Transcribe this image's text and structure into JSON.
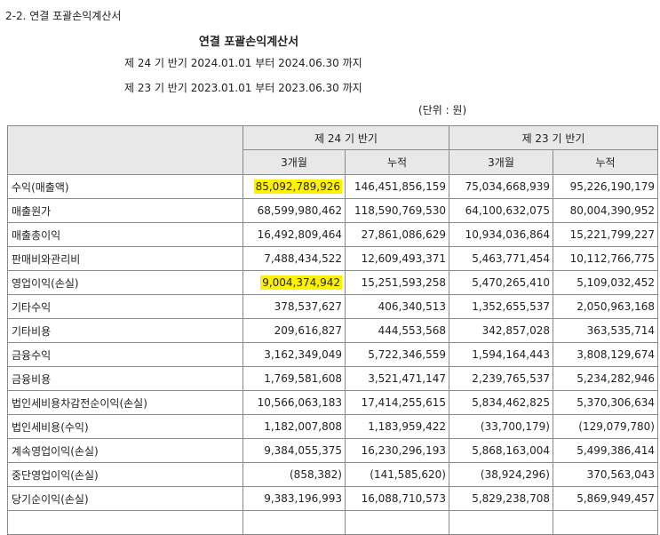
{
  "section_label": "2-2. 연결 포괄손익계산서",
  "doc_title": "연결 포괄손익계산서",
  "period_current": "제 24 기 반기 2024.01.01 부터 2024.06.30 까지",
  "period_prior": "제 23 기 반기 2023.01.01 부터 2023.06.30 까지",
  "unit": "(단위 : 원)",
  "table": {
    "period_headers": [
      "제 24 기 반기",
      "제 23 기 반기"
    ],
    "sub_headers": [
      "3개월",
      "누적",
      "3개월",
      "누적"
    ],
    "rows": [
      {
        "label": "수익(매출액)",
        "values": [
          "85,092,789,926",
          "146,451,856,159",
          "75,034,668,939",
          "95,226,190,179"
        ],
        "highlight": [
          true,
          false,
          false,
          false
        ]
      },
      {
        "label": "매출원가",
        "values": [
          "68,599,980,462",
          "118,590,769,530",
          "64,100,632,075",
          "80,004,390,952"
        ],
        "highlight": [
          false,
          false,
          false,
          false
        ]
      },
      {
        "label": "매출총이익",
        "values": [
          "16,492,809,464",
          "27,861,086,629",
          "10,934,036,864",
          "15,221,799,227"
        ],
        "highlight": [
          false,
          false,
          false,
          false
        ]
      },
      {
        "label": "판매비와관리비",
        "values": [
          "7,488,434,522",
          "12,609,493,371",
          "5,463,771,454",
          "10,112,766,775"
        ],
        "highlight": [
          false,
          false,
          false,
          false
        ]
      },
      {
        "label": "영업이익(손실)",
        "values": [
          "9,004,374,942",
          "15,251,593,258",
          "5,470,265,410",
          "5,109,032,452"
        ],
        "highlight": [
          true,
          false,
          false,
          false
        ]
      },
      {
        "label": "기타수익",
        "values": [
          "378,537,627",
          "406,340,513",
          "1,352,655,537",
          "2,050,963,168"
        ],
        "highlight": [
          false,
          false,
          false,
          false
        ]
      },
      {
        "label": "기타비용",
        "values": [
          "209,616,827",
          "444,553,568",
          "342,857,028",
          "363,535,714"
        ],
        "highlight": [
          false,
          false,
          false,
          false
        ]
      },
      {
        "label": "금융수익",
        "values": [
          "3,162,349,049",
          "5,722,346,559",
          "1,594,164,443",
          "3,808,129,674"
        ],
        "highlight": [
          false,
          false,
          false,
          false
        ]
      },
      {
        "label": "금융비용",
        "values": [
          "1,769,581,608",
          "3,521,471,147",
          "2,239,765,537",
          "5,234,282,946"
        ],
        "highlight": [
          false,
          false,
          false,
          false
        ]
      },
      {
        "label": "법인세비용차감전순이익(손실)",
        "values": [
          "10,566,063,183",
          "17,414,255,615",
          "5,834,462,825",
          "5,370,306,634"
        ],
        "highlight": [
          false,
          false,
          false,
          false
        ]
      },
      {
        "label": "법인세비용(수익)",
        "values": [
          "1,182,007,808",
          "1,183,959,422",
          "(33,700,179)",
          "(129,079,780)"
        ],
        "highlight": [
          false,
          false,
          false,
          false
        ]
      },
      {
        "label": "계속영업이익(손실)",
        "values": [
          "9,384,055,375",
          "16,230,296,193",
          "5,868,163,004",
          "5,499,386,414"
        ],
        "highlight": [
          false,
          false,
          false,
          false
        ]
      },
      {
        "label": "중단영업이익(손실)",
        "values": [
          "(858,382)",
          "(141,585,620)",
          "(38,924,296)",
          "370,563,043"
        ],
        "highlight": [
          false,
          false,
          false,
          false
        ]
      },
      {
        "label": "당기순이익(손실)",
        "values": [
          "9,383,196,993",
          "16,088,710,573",
          "5,829,238,708",
          "5,869,949,457"
        ],
        "highlight": [
          false,
          false,
          false,
          false
        ]
      },
      {
        "label": "",
        "values": [
          "",
          "",
          "",
          ""
        ],
        "highlight": [
          false,
          false,
          false,
          false
        ]
      }
    ]
  }
}
